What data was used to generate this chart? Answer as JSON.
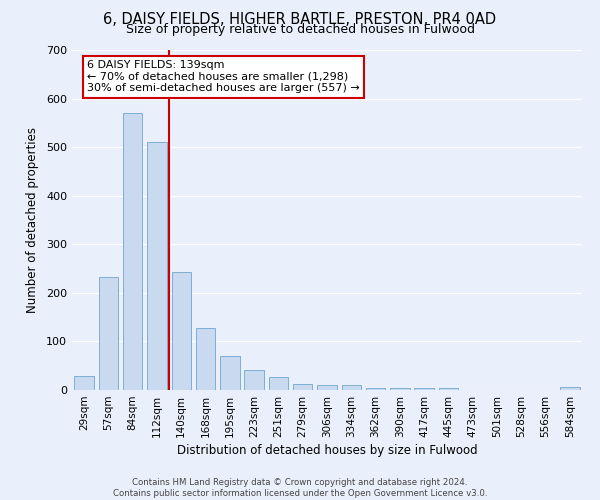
{
  "title": "6, DAISY FIELDS, HIGHER BARTLE, PRESTON, PR4 0AD",
  "subtitle": "Size of property relative to detached houses in Fulwood",
  "xlabel": "Distribution of detached houses by size in Fulwood",
  "ylabel": "Number of detached properties",
  "bar_labels": [
    "29sqm",
    "57sqm",
    "84sqm",
    "112sqm",
    "140sqm",
    "168sqm",
    "195sqm",
    "223sqm",
    "251sqm",
    "279sqm",
    "306sqm",
    "334sqm",
    "362sqm",
    "390sqm",
    "417sqm",
    "445sqm",
    "473sqm",
    "501sqm",
    "528sqm",
    "556sqm",
    "584sqm"
  ],
  "bar_values": [
    28,
    232,
    570,
    510,
    242,
    127,
    70,
    42,
    27,
    12,
    10,
    10,
    4,
    4,
    4,
    4,
    0,
    0,
    0,
    0,
    7
  ],
  "bar_color": "#c9d9f0",
  "bar_edgecolor": "#7fafd4",
  "bg_color": "#eaf0fb",
  "grid_color": "#ffffff",
  "vline_x_index": 3.5,
  "vline_color": "#cc0000",
  "annotation_text": "6 DAISY FIELDS: 139sqm\n← 70% of detached houses are smaller (1,298)\n30% of semi-detached houses are larger (557) →",
  "annotation_box_color": "#ffffff",
  "annotation_box_edgecolor": "#cc0000",
  "footer_line1": "Contains HM Land Registry data © Crown copyright and database right 2024.",
  "footer_line2": "Contains public sector information licensed under the Open Government Licence v3.0.",
  "ylim": [
    0,
    700
  ],
  "yticks": [
    0,
    100,
    200,
    300,
    400,
    500,
    600,
    700
  ]
}
